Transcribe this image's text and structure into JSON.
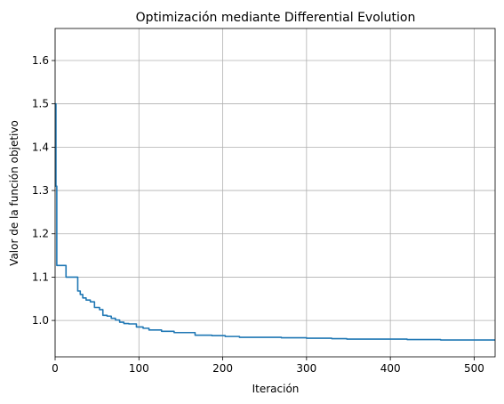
{
  "chart_data": {
    "type": "line",
    "title": "Optimización mediante Differential Evolution",
    "xlabel": "Iteración",
    "ylabel": "Valor de la función objetivo",
    "xlim": [
      0,
      525
    ],
    "ylim": [
      0.916,
      1.674
    ],
    "xticks": [
      0,
      100,
      200,
      300,
      400,
      500
    ],
    "yticks": [
      1.0,
      1.1,
      1.2,
      1.3,
      1.4,
      1.5,
      1.6
    ],
    "ytick_labels": [
      "1.0",
      "1.1",
      "1.2",
      "1.3",
      "1.4",
      "1.5",
      "1.6"
    ],
    "grid": true,
    "line_color": "#1f77b4",
    "series": [
      {
        "x": [
          0,
          1,
          2,
          3,
          12,
          13,
          25,
          27,
          30,
          33,
          37,
          42,
          47,
          53,
          57,
          62,
          67,
          72,
          77,
          82,
          88,
          97,
          105,
          112,
          127,
          142,
          167,
          187,
          203,
          220,
          270,
          300,
          330,
          348,
          380,
          420,
          460,
          525
        ],
        "y": [
          1.5,
          1.31,
          1.127,
          1.127,
          1.127,
          1.1,
          1.1,
          1.068,
          1.06,
          1.052,
          1.047,
          1.043,
          1.03,
          1.025,
          1.012,
          1.01,
          1.005,
          1.001,
          0.996,
          0.993,
          0.992,
          0.985,
          0.982,
          0.978,
          0.975,
          0.972,
          0.966,
          0.965,
          0.963,
          0.961,
          0.96,
          0.959,
          0.958,
          0.957,
          0.957,
          0.956,
          0.955,
          0.955
        ]
      }
    ]
  }
}
